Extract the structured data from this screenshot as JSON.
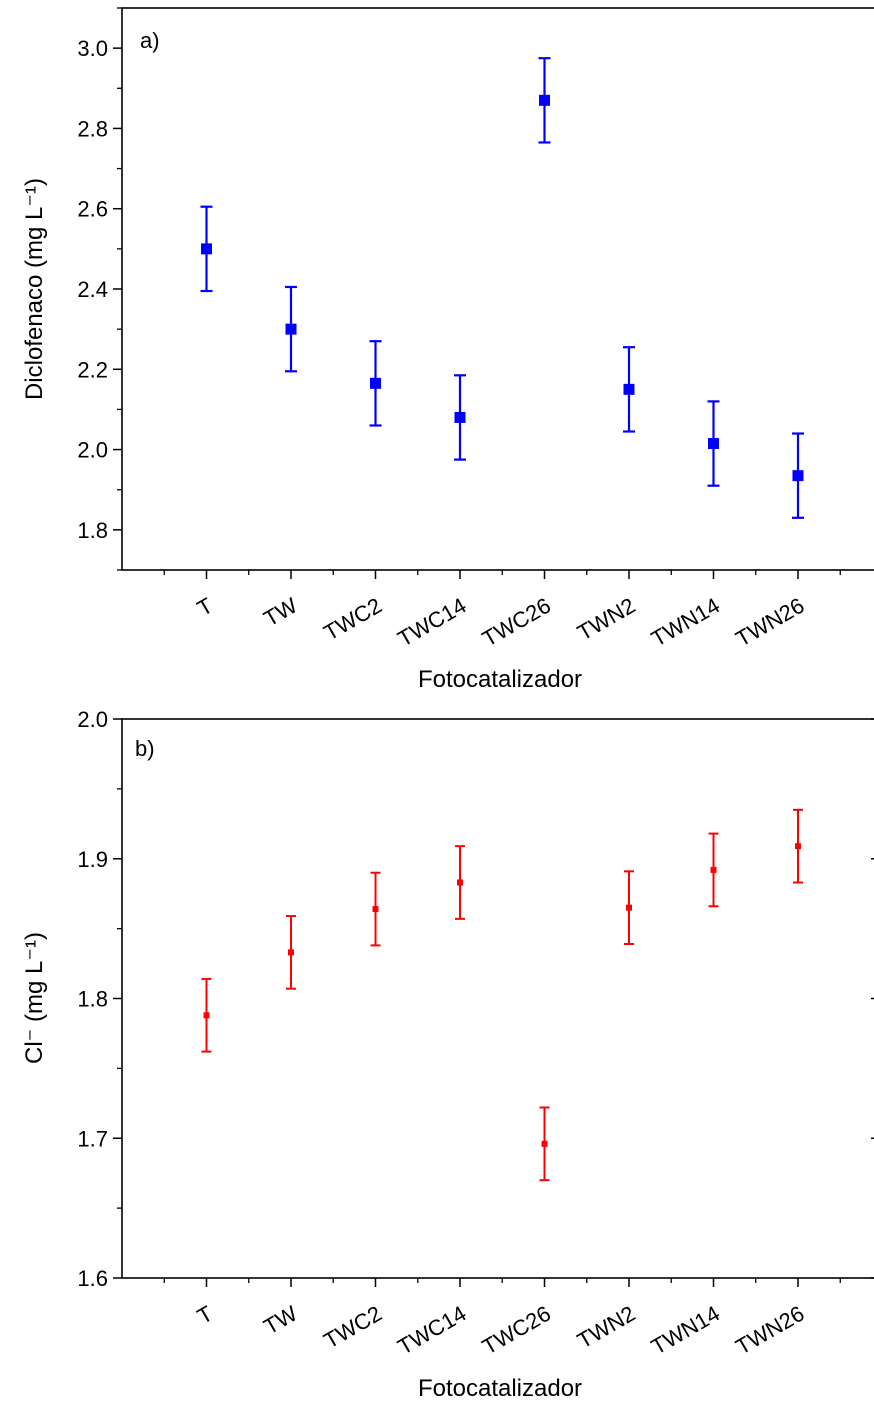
{
  "chart_data": [
    {
      "type": "scatter",
      "panel_label": "a)",
      "xlabel": "Fotocatalizador",
      "ylabel": "Diclofenaco (mg L⁻¹)",
      "categories": [
        "T",
        "TW",
        "TWC2",
        "TWC14",
        "TWC26",
        "TWN2",
        "TWN14",
        "TWN26"
      ],
      "values": [
        2.5,
        2.3,
        2.165,
        2.08,
        2.87,
        2.15,
        2.015,
        1.935
      ],
      "errors": [
        0.105,
        0.105,
        0.105,
        0.105,
        0.105,
        0.105,
        0.105,
        0.105
      ],
      "ylim": [
        1.7,
        3.1
      ],
      "yticks": [
        "1.8",
        "2.0",
        "2.2",
        "2.4",
        "2.6",
        "2.8",
        "3.0"
      ],
      "color": "#0000ff",
      "marker": "square",
      "grid": false
    },
    {
      "type": "scatter",
      "panel_label": "b)",
      "xlabel": "Fotocatalizador",
      "ylabel": "Cl⁻ (mg L⁻¹)",
      "categories": [
        "T",
        "TW",
        "TWC2",
        "TWC14",
        "TWC26",
        "TWN2",
        "TWN14",
        "TWN26"
      ],
      "values": [
        1.788,
        1.833,
        1.864,
        1.883,
        1.696,
        1.865,
        1.892,
        1.909
      ],
      "errors": [
        0.026,
        0.026,
        0.026,
        0.026,
        0.026,
        0.026,
        0.026,
        0.026
      ],
      "ylim": [
        1.6,
        2.0
      ],
      "yticks": [
        "1.6",
        "1.7",
        "1.8",
        "1.9",
        "2.0"
      ],
      "color": "#ff0000",
      "marker": "square",
      "grid": false
    }
  ]
}
